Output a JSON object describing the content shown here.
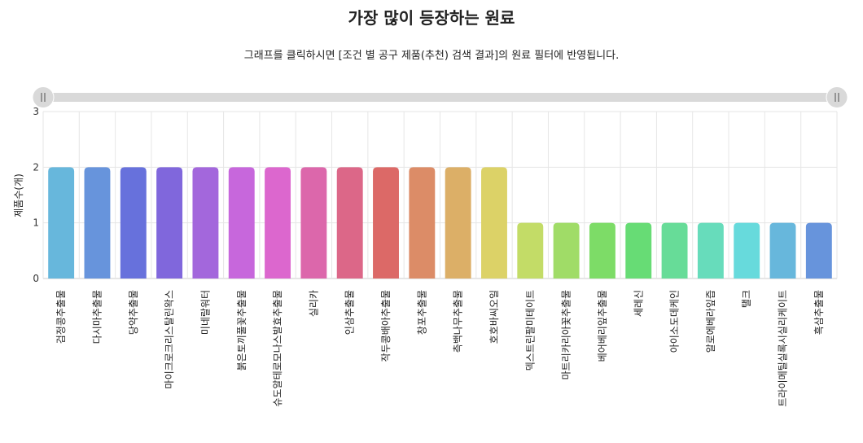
{
  "header": {
    "title": "가장 많이 등장하는 원료",
    "subtitle": "그래프를 클릭하시면 [조건 별 공구 제품(추천) 검색 결과]의 원료 필터에 반영됩니다."
  },
  "scrollbar": {
    "start": 0,
    "end": 1,
    "grip_icon": "grip-lines-icon"
  },
  "chart_data": {
    "type": "bar",
    "title": "가장 많이 등장하는 원료",
    "xlabel": "",
    "ylabel": "제품수(개)",
    "ylim": [
      0,
      3
    ],
    "yticks": [
      "0",
      "1",
      "2",
      "3"
    ],
    "grid": true,
    "categories": [
      "검정콩추출물",
      "다시마추출물",
      "당약추출물",
      "마이크로크리스탈린왁스",
      "미네랄워터",
      "붉은토끼풀꽃추출물",
      "슈도알테로모나스발효추출물",
      "실리카",
      "인삼추출물",
      "작두콩배아추출물",
      "창포추출물",
      "측백나무추출물",
      "호호바씨오일",
      "덱스트린팔미테이트",
      "마트리카리아꽃추출물",
      "베어베리잎추출물",
      "세레신",
      "아이소도데케인",
      "알로에베라잎즙",
      "탤크",
      "트라이메틸실록시실리케이트",
      "흑삼추출물"
    ],
    "values": [
      2,
      2,
      2,
      2,
      2,
      2,
      2,
      2,
      2,
      2,
      2,
      2,
      2,
      1,
      1,
      1,
      1,
      1,
      1,
      1,
      1,
      1
    ],
    "colors": [
      "#67b7dc",
      "#6794dc",
      "#6771dc",
      "#8067dc",
      "#a367dc",
      "#c767dc",
      "#dc67ce",
      "#dc67ab",
      "#dc6788",
      "#dc6967",
      "#dc8c67",
      "#dcaf67",
      "#dcd267",
      "#c3dc67",
      "#a0dc67",
      "#7ddc67",
      "#67dc75",
      "#67dc98",
      "#67dcbb",
      "#67dadc",
      "#67b7dc",
      "#6794dc"
    ]
  }
}
